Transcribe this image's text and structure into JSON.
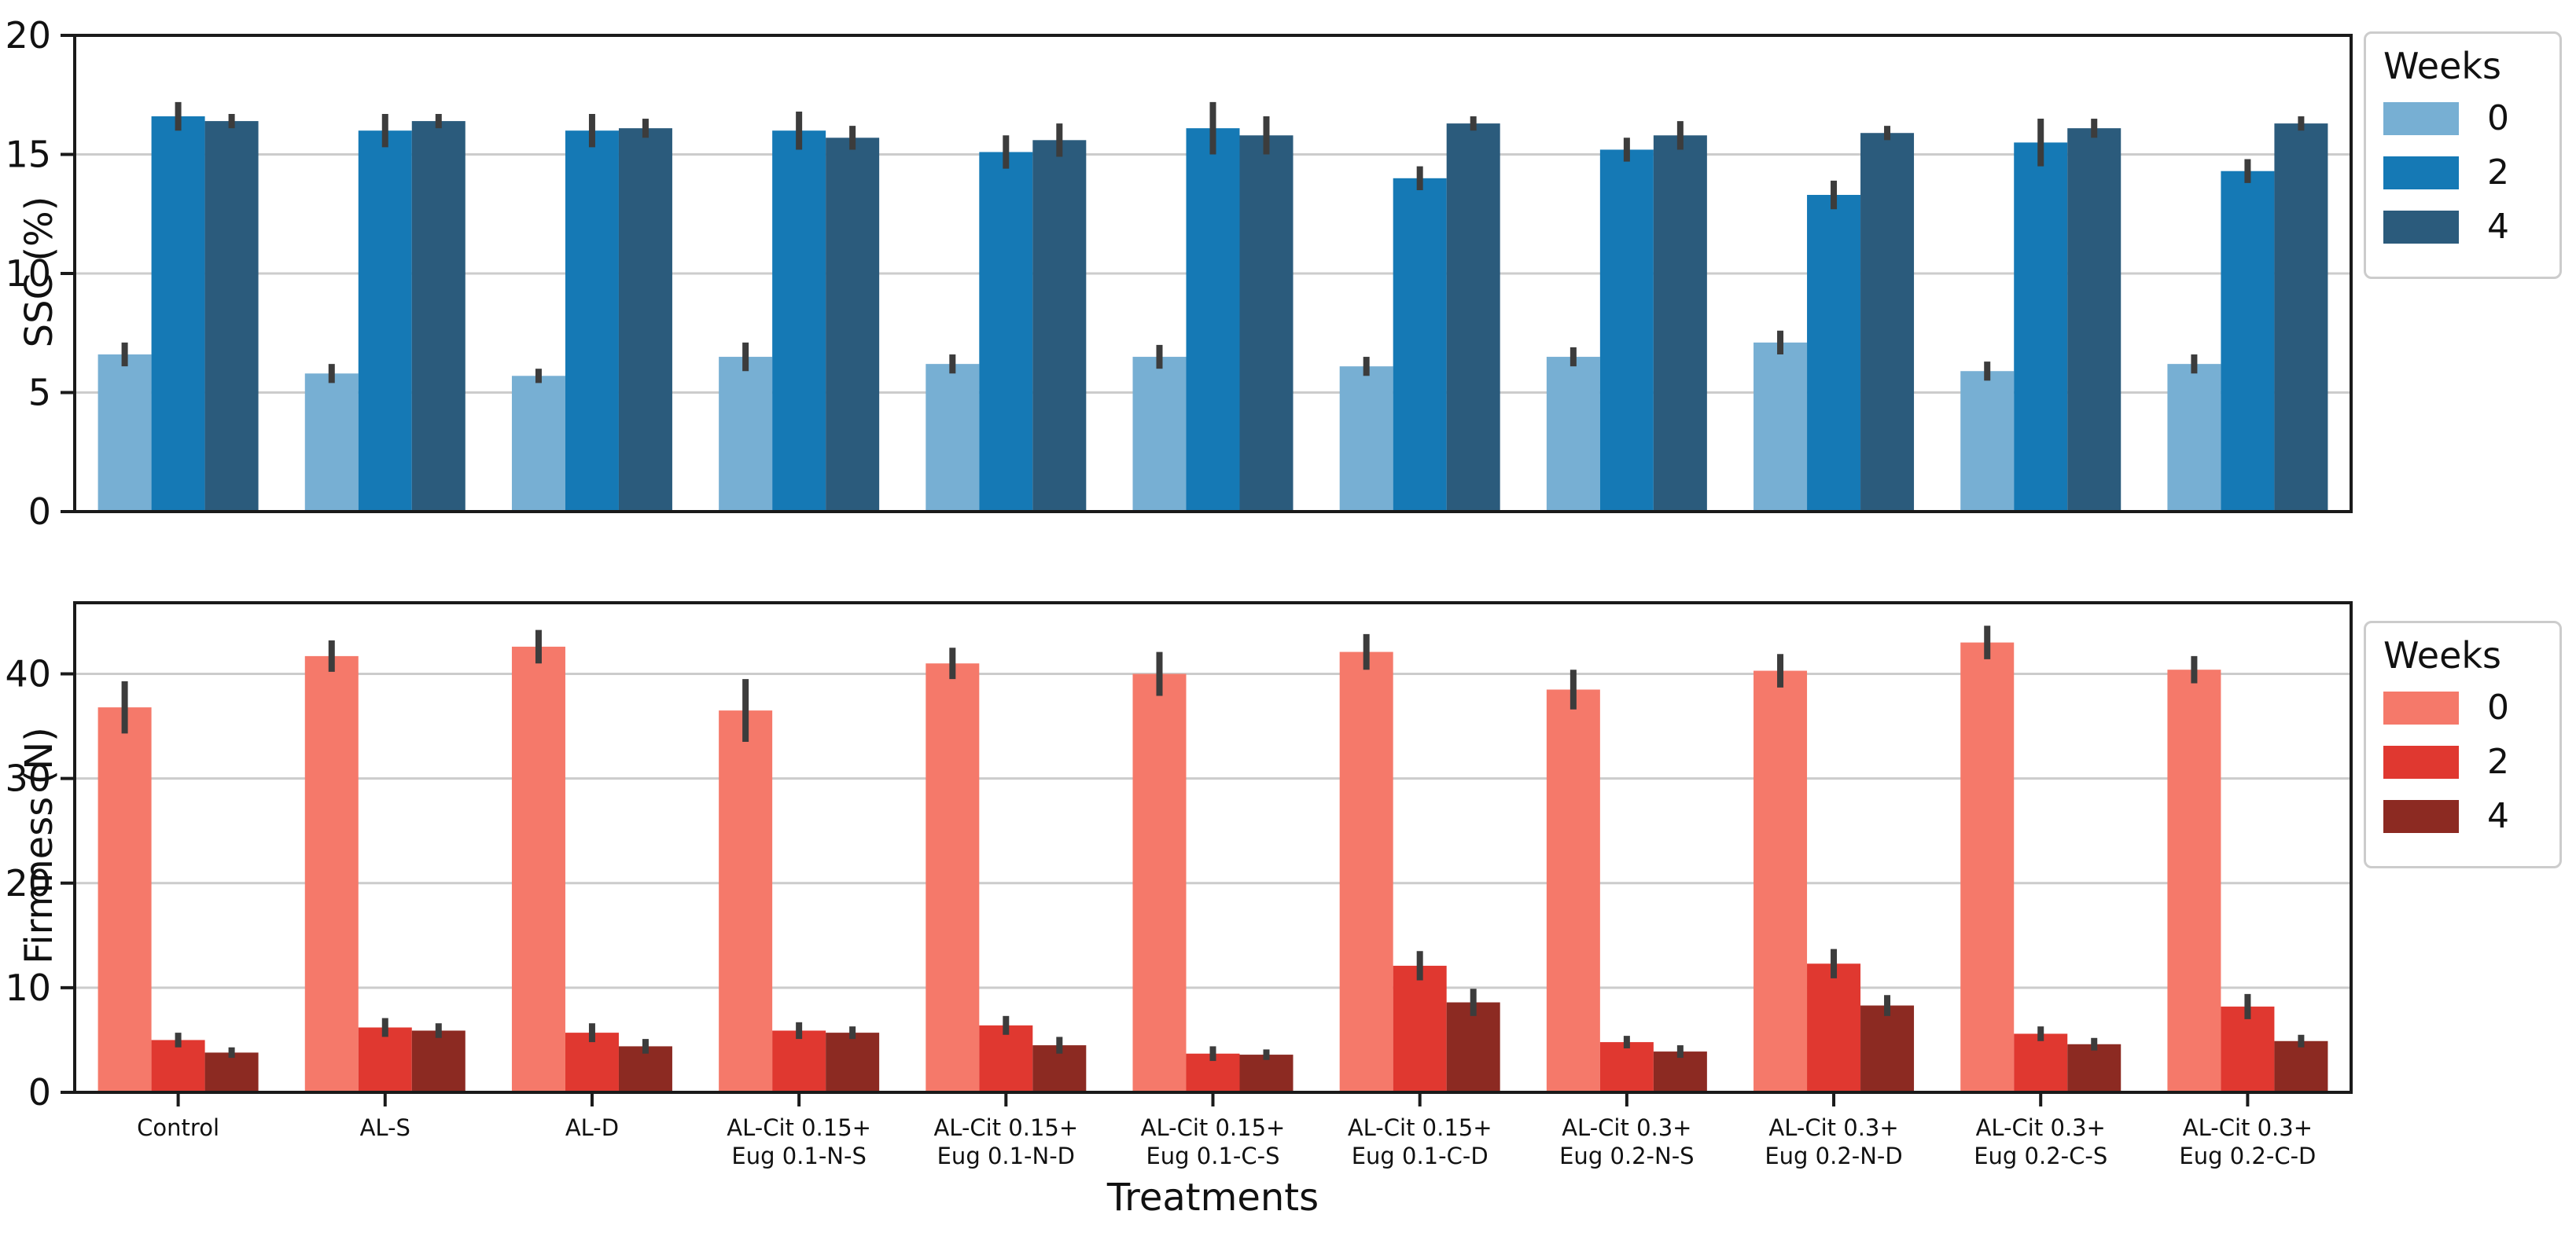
{
  "figure": {
    "xlabel": "Treatments",
    "background": "#ffffff",
    "spine_color": "#1a1a1a",
    "grid_color": "#cccccc",
    "errorbar_color": "#3c3c3c"
  },
  "chart_data": [
    {
      "type": "bar",
      "title": "",
      "ylabel": "SSC (%)",
      "xlabel": "",
      "ylim": [
        0,
        20
      ],
      "yticks": [
        0,
        5,
        10,
        15,
        20
      ],
      "grid": true,
      "legend": {
        "title": "Weeks",
        "position": "right-top",
        "labels": [
          "0",
          "2",
          "4"
        ]
      },
      "colors": [
        "#77afd3",
        "#1579b5",
        "#2b5b7c"
      ],
      "categories": [
        "Control",
        "AL-S",
        "AL-D",
        "AL-Cit 0.15+\nEug 0.1-N-S",
        "AL-Cit 0.15+\nEug 0.1-N-D",
        "AL-Cit 0.15+\nEug 0.1-C-S",
        "AL-Cit 0.15+\nEug 0.1-C-D",
        "AL-Cit 0.3+\nEug 0.2-N-S",
        "AL-Cit 0.3+\nEug 0.2-N-D",
        "AL-Cit 0.3+\nEug 0.2-C-S",
        "AL-Cit 0.3+\nEug 0.2-C-D"
      ],
      "series": [
        {
          "name": "0",
          "values": [
            6.6,
            5.8,
            5.7,
            6.5,
            6.2,
            6.5,
            6.1,
            6.5,
            7.1,
            5.9,
            6.2
          ],
          "errors": [
            0.5,
            0.4,
            0.3,
            0.6,
            0.4,
            0.5,
            0.4,
            0.4,
            0.5,
            0.4,
            0.4
          ]
        },
        {
          "name": "2",
          "values": [
            16.6,
            16.0,
            16.0,
            16.0,
            15.1,
            16.1,
            14.0,
            15.2,
            13.3,
            15.5,
            14.3
          ],
          "errors": [
            0.6,
            0.7,
            0.7,
            0.8,
            0.7,
            1.1,
            0.5,
            0.5,
            0.6,
            1.0,
            0.5
          ]
        },
        {
          "name": "4",
          "values": [
            16.4,
            16.4,
            16.1,
            15.7,
            15.6,
            15.8,
            16.3,
            15.8,
            15.9,
            16.1,
            16.3
          ],
          "errors": [
            0.3,
            0.3,
            0.4,
            0.5,
            0.7,
            0.8,
            0.3,
            0.6,
            0.3,
            0.4,
            0.3
          ]
        }
      ]
    },
    {
      "type": "bar",
      "title": "",
      "ylabel": "Firmness (N)",
      "xlabel": "Treatments",
      "ylim": [
        0,
        46.8
      ],
      "yticks": [
        0,
        10,
        20,
        30,
        40
      ],
      "grid": true,
      "legend": {
        "title": "Weeks",
        "position": "right-top",
        "labels": [
          "0",
          "2",
          "4"
        ]
      },
      "colors": [
        "#f5796a",
        "#e03830",
        "#8c2a22"
      ],
      "categories": [
        "Control",
        "AL-S",
        "AL-D",
        "AL-Cit 0.15+\nEug 0.1-N-S",
        "AL-Cit 0.15+\nEug 0.1-N-D",
        "AL-Cit 0.15+\nEug 0.1-C-S",
        "AL-Cit 0.15+\nEug 0.1-C-D",
        "AL-Cit 0.3+\nEug 0.2-N-S",
        "AL-Cit 0.3+\nEug 0.2-N-D",
        "AL-Cit 0.3+\nEug 0.2-C-S",
        "AL-Cit 0.3+\nEug 0.2-C-D"
      ],
      "series": [
        {
          "name": "0",
          "values": [
            36.8,
            41.7,
            42.6,
            36.5,
            41.0,
            40.0,
            42.1,
            38.5,
            40.3,
            43.0,
            40.4
          ],
          "errors": [
            2.5,
            1.5,
            1.6,
            3.0,
            1.5,
            2.1,
            1.7,
            1.9,
            1.6,
            1.6,
            1.3
          ]
        },
        {
          "name": "2",
          "values": [
            5.0,
            6.2,
            5.7,
            5.9,
            6.4,
            3.7,
            12.1,
            4.8,
            12.3,
            5.6,
            8.2
          ],
          "errors": [
            0.7,
            0.9,
            0.9,
            0.8,
            0.9,
            0.7,
            1.4,
            0.6,
            1.4,
            0.7,
            1.2
          ]
        },
        {
          "name": "4",
          "values": [
            3.8,
            5.9,
            4.4,
            5.7,
            4.5,
            3.6,
            8.6,
            3.9,
            8.3,
            4.6,
            4.9
          ],
          "errors": [
            0.5,
            0.7,
            0.7,
            0.6,
            0.8,
            0.5,
            1.3,
            0.6,
            1.0,
            0.6,
            0.6
          ]
        }
      ]
    }
  ]
}
